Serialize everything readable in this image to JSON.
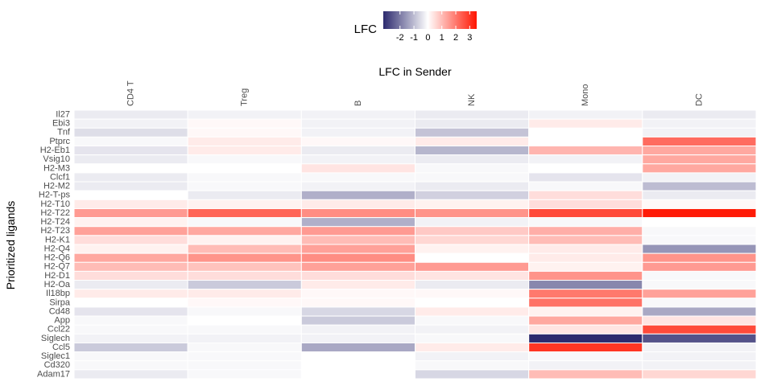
{
  "chart_data": {
    "type": "heatmap",
    "title": "",
    "xlabel": "LFC in Sender",
    "ylabel": "Prioritized ligands",
    "x_position": "top",
    "legend_position": "top",
    "legend": {
      "title": "LFC",
      "ticks": [
        -2,
        -1,
        0,
        1,
        2,
        3
      ],
      "limits": [
        -3.2,
        3.5
      ],
      "low_color": "#2C2A6E",
      "mid_color": "#FFFFFF",
      "high_color": "#FF1400"
    },
    "columns": [
      "CD4 T",
      "Treg",
      "B",
      "NK",
      "Mono",
      "DC"
    ],
    "rows": [
      "Il27",
      "Ebi3",
      "Tnf",
      "Ptprc",
      "H2-Eb1",
      "Vsig10",
      "H2-M3",
      "Clcf1",
      "H2-M2",
      "H2-T-ps",
      "H2-T10",
      "H2-T22",
      "H2-T24",
      "H2-T23",
      "H2-K1",
      "H2-Q4",
      "H2-Q6",
      "H2-Q7",
      "H2-D1",
      "H2-Oa",
      "Il18bp",
      "Sirpa",
      "Cd48",
      "App",
      "Ccl22",
      "Siglech",
      "Ccl5",
      "Siglec1",
      "Cd320",
      "Adam17"
    ],
    "values": [
      [
        -0.3,
        -0.2,
        -0.2,
        -0.3,
        -0.2,
        -0.3
      ],
      [
        -0.2,
        0.1,
        -0.2,
        -0.3,
        0.3,
        -0.2
      ],
      [
        -0.5,
        0.1,
        -0.2,
        -0.9,
        0.0,
        -0.2
      ],
      [
        -0.1,
        0.3,
        0.1,
        0.3,
        0.0,
        2.2
      ],
      [
        -0.4,
        0.3,
        -0.3,
        -1.1,
        1.1,
        1.3
      ],
      [
        -0.3,
        -0.1,
        -0.2,
        -0.3,
        -0.2,
        1.3
      ],
      [
        0.0,
        0.0,
        0.4,
        -0.1,
        0.0,
        1.3
      ],
      [
        -0.3,
        -0.1,
        -0.1,
        -0.1,
        -0.4,
        -0.2
      ],
      [
        -0.3,
        -0.1,
        -0.2,
        -0.3,
        -0.1,
        -1.0
      ],
      [
        0.0,
        -0.3,
        -1.2,
        -0.7,
        0.5,
        -0.3
      ],
      [
        0.3,
        0.2,
        0.3,
        0.2,
        0.5,
        0.1
      ],
      [
        1.5,
        2.3,
        1.7,
        1.6,
        2.7,
        3.4
      ],
      [
        0.2,
        -0.1,
        -1.2,
        -0.2,
        -0.1,
        0.0
      ],
      [
        1.4,
        1.3,
        1.5,
        0.8,
        1.2,
        -0.1
      ],
      [
        0.5,
        0.2,
        1.0,
        0.6,
        1.0,
        -0.1
      ],
      [
        0.2,
        1.0,
        1.4,
        0.2,
        0.3,
        -1.6
      ],
      [
        1.3,
        1.6,
        1.7,
        0.0,
        0.3,
        1.6
      ],
      [
        1.0,
        0.9,
        1.4,
        1.5,
        0.2,
        1.5
      ],
      [
        0.5,
        0.5,
        0.5,
        0.4,
        1.6,
        -0.1
      ],
      [
        -0.3,
        -0.8,
        0.3,
        -0.3,
        -1.8,
        -0.1
      ],
      [
        0.3,
        0.3,
        0.1,
        0.1,
        2.0,
        1.4
      ],
      [
        0.0,
        0.1,
        0.1,
        0.0,
        2.1,
        -0.1
      ],
      [
        -0.4,
        -0.1,
        -0.6,
        0.3,
        0.2,
        -1.3
      ],
      [
        -0.1,
        0.0,
        -0.8,
        -0.1,
        1.3,
        0.4
      ],
      [
        -0.1,
        -0.1,
        -0.2,
        -0.2,
        0.4,
        2.7
      ],
      [
        -0.2,
        -0.2,
        -0.2,
        -0.1,
        -3.2,
        -2.6
      ],
      [
        -0.8,
        -0.1,
        -1.3,
        0.3,
        3.0,
        -0.2
      ],
      [
        -0.1,
        -0.1,
        0.0,
        -0.2,
        -0.1,
        -0.2
      ],
      [
        -0.1,
        -0.1,
        0.0,
        -0.1,
        -0.2,
        -0.2
      ],
      [
        -0.3,
        -0.1,
        0.0,
        -0.6,
        1.0,
        0.6
      ]
    ]
  }
}
